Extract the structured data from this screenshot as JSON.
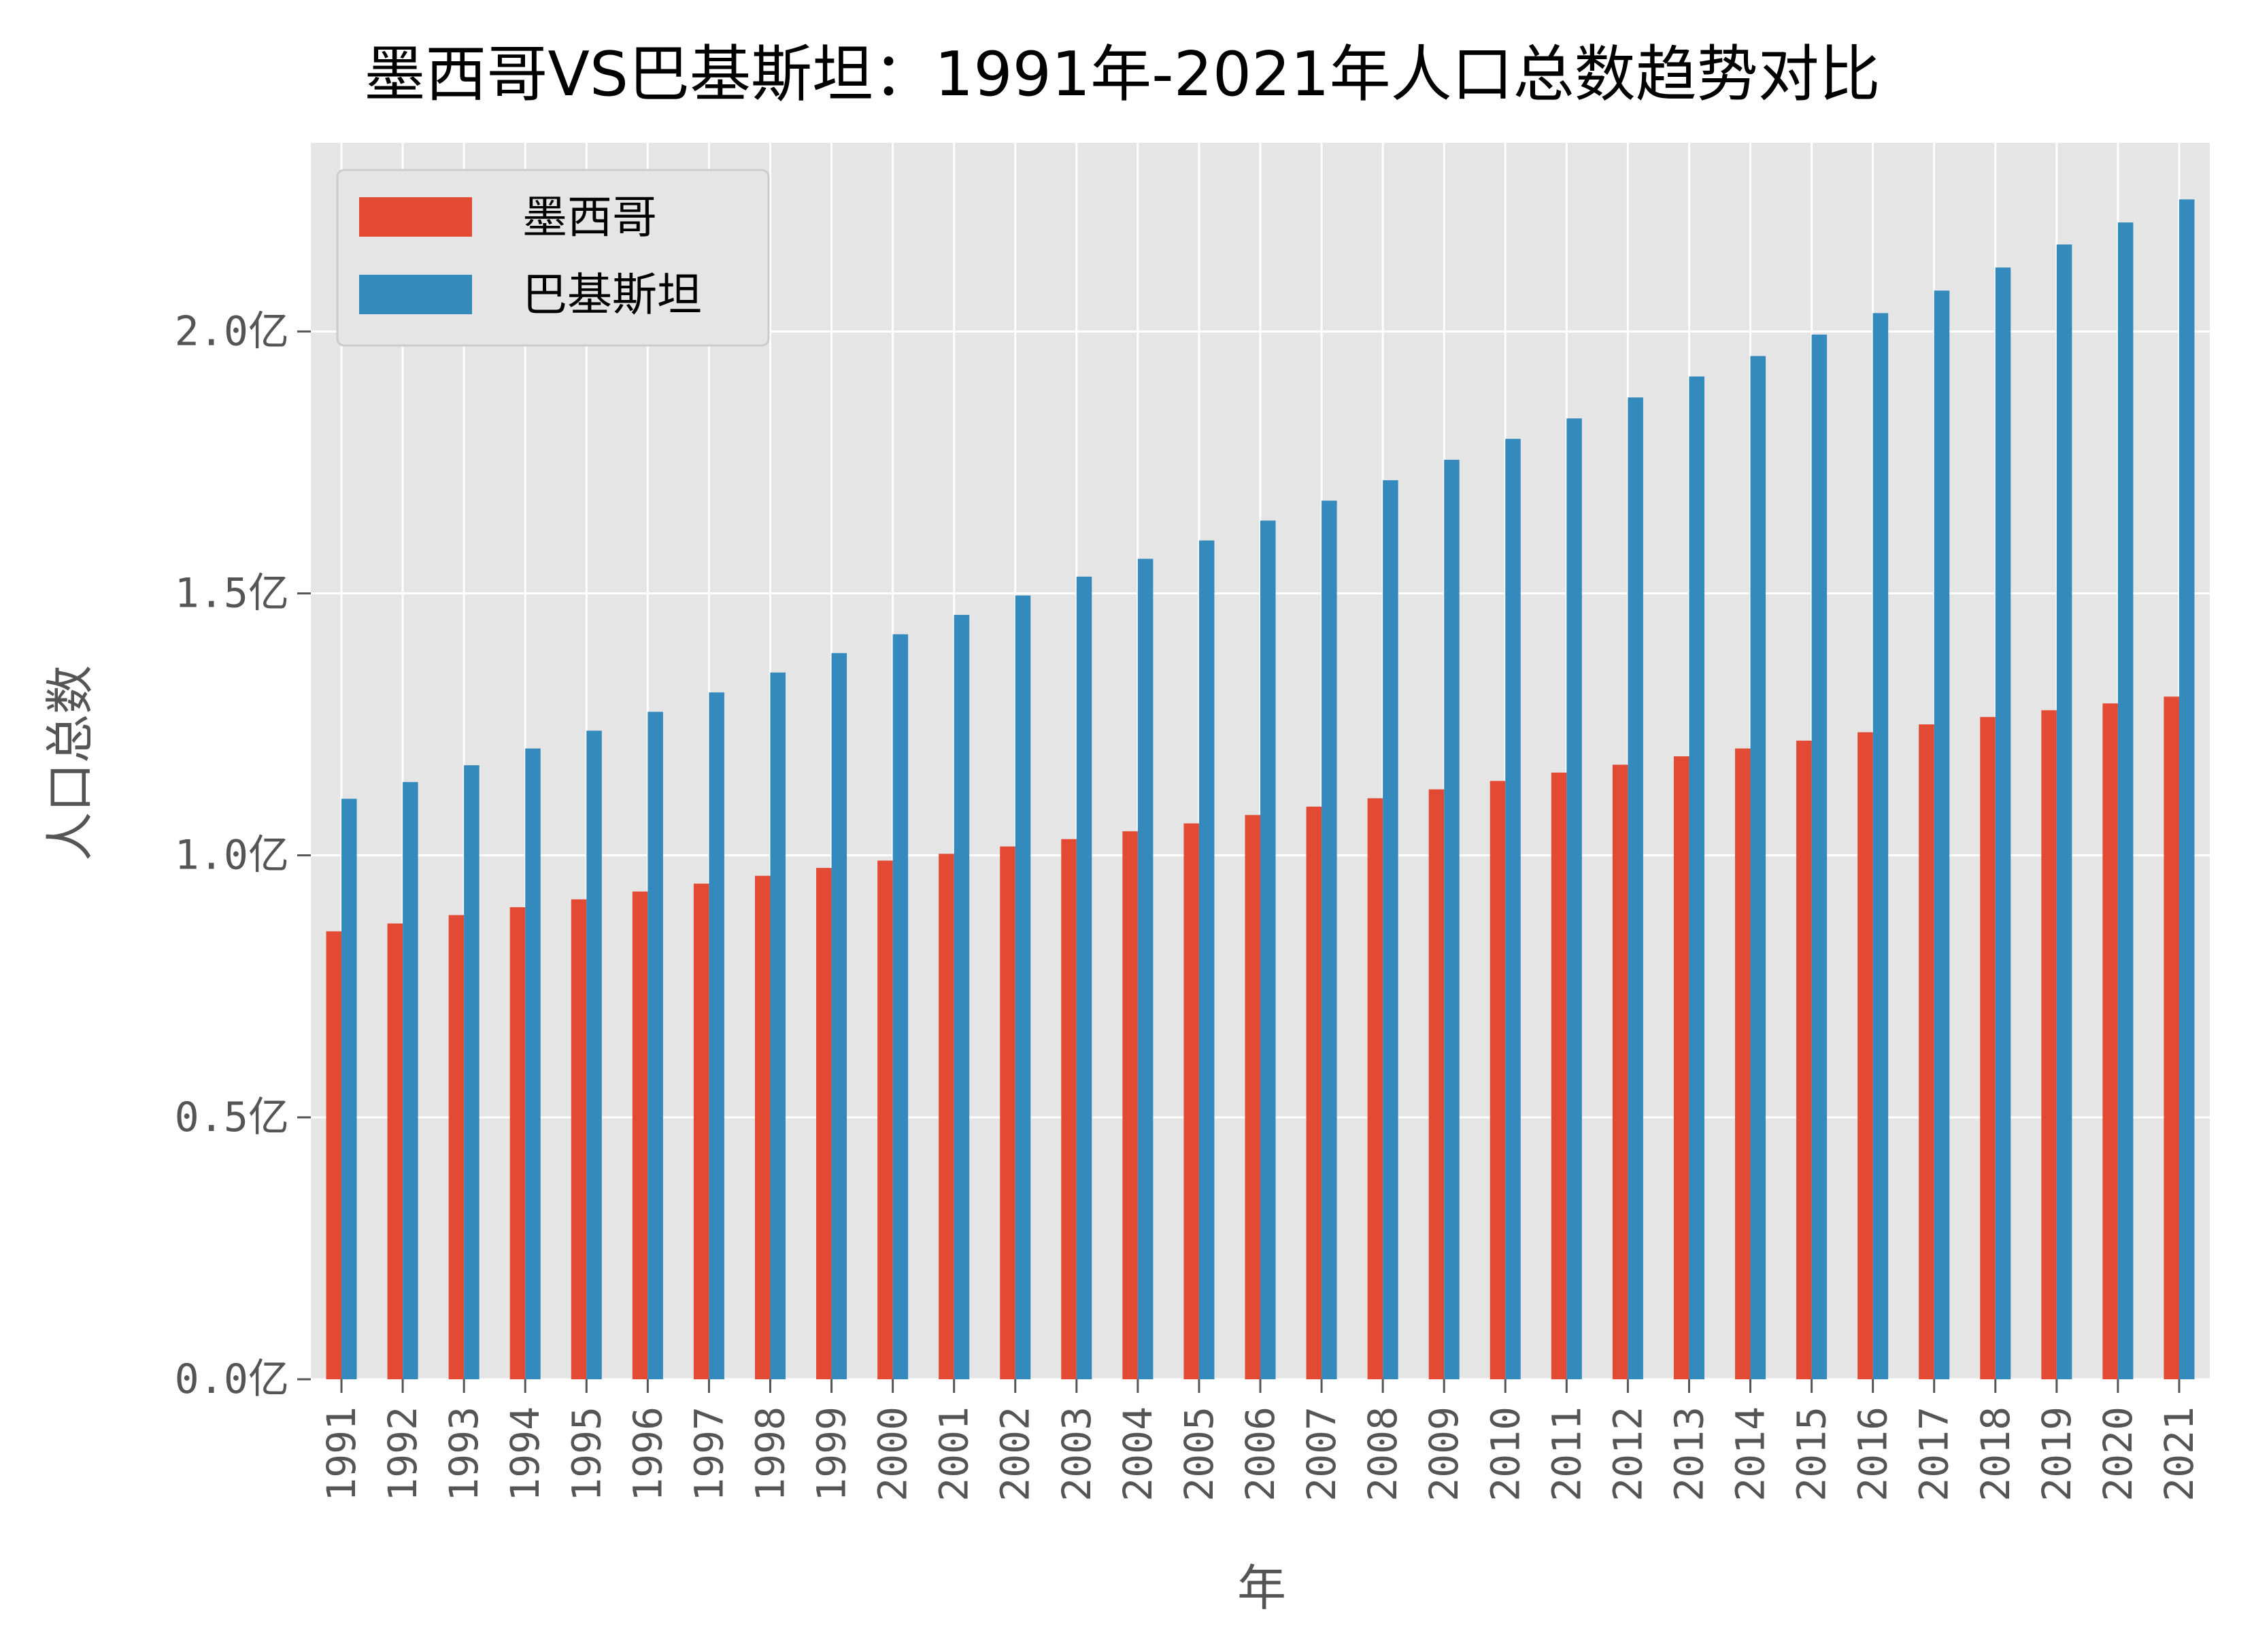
{
  "chart_data": {
    "type": "bar",
    "title": "墨西哥VS巴基斯坦：1991年-2021年人口总数趋势对比",
    "xlabel": "年",
    "ylabel": "人口总数",
    "y_tick_labels": [
      "0.0亿",
      "0.5亿",
      "1.0亿",
      "1.5亿",
      "2.0亿"
    ],
    "y_tick_values": [
      0,
      0.5,
      1.0,
      1.5,
      2.0
    ],
    "ylim": [
      0,
      2.36
    ],
    "grid": true,
    "legend_position": "top-left",
    "categories": [
      "1991",
      "1992",
      "1993",
      "1994",
      "1995",
      "1996",
      "1997",
      "1998",
      "1999",
      "2000",
      "2001",
      "2002",
      "2003",
      "2004",
      "2005",
      "2006",
      "2007",
      "2008",
      "2009",
      "2010",
      "2011",
      "2012",
      "2013",
      "2014",
      "2015",
      "2016",
      "2017",
      "2018",
      "2019",
      "2020",
      "2021"
    ],
    "series": [
      {
        "name": "墨西哥",
        "color": "#E24A33",
        "values": [
          0.855,
          0.87,
          0.886,
          0.901,
          0.916,
          0.931,
          0.946,
          0.961,
          0.976,
          0.99,
          1.003,
          1.017,
          1.031,
          1.046,
          1.061,
          1.077,
          1.093,
          1.109,
          1.126,
          1.142,
          1.158,
          1.173,
          1.189,
          1.204,
          1.219,
          1.235,
          1.25,
          1.264,
          1.277,
          1.29,
          1.303
        ]
      },
      {
        "name": "巴基斯坦",
        "color": "#348ABD",
        "values": [
          1.108,
          1.14,
          1.172,
          1.204,
          1.238,
          1.274,
          1.311,
          1.349,
          1.386,
          1.422,
          1.459,
          1.496,
          1.532,
          1.566,
          1.601,
          1.639,
          1.677,
          1.716,
          1.755,
          1.795,
          1.834,
          1.874,
          1.914,
          1.953,
          1.994,
          2.035,
          2.078,
          2.122,
          2.166,
          2.208,
          2.252
        ]
      }
    ]
  }
}
